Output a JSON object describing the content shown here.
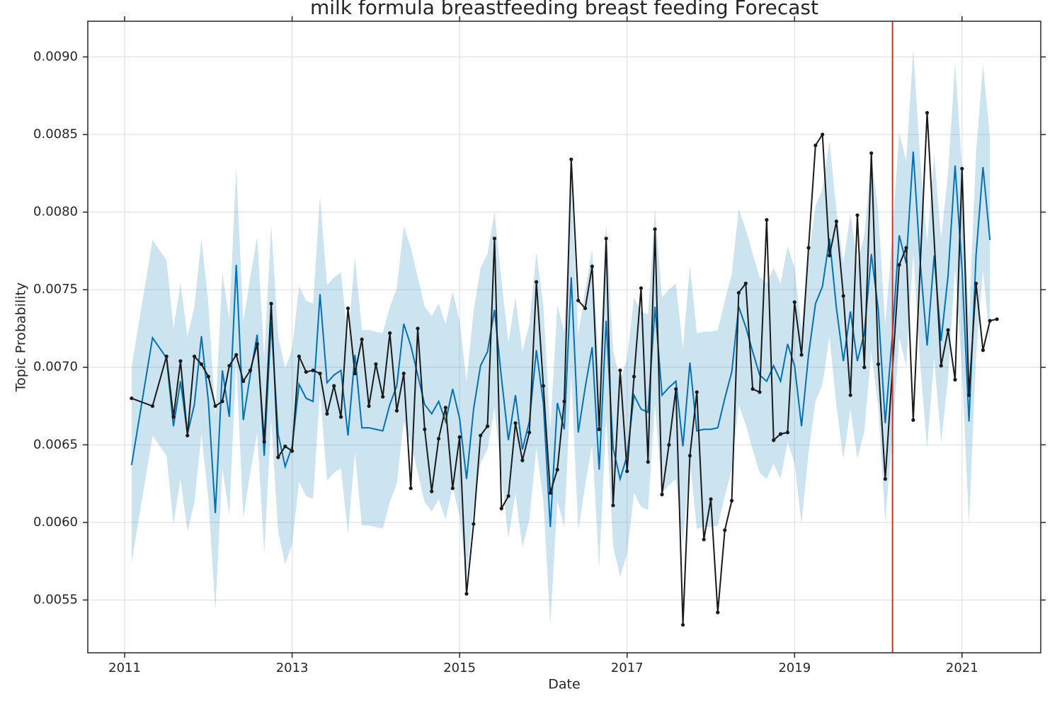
{
  "chart_data": {
    "type": "forecast",
    "title": "milk formula breastfeeding breast feeding Forecast",
    "x_label": "Date",
    "y_label": "Topic Probability",
    "xlim": [
      2010.56,
      2021.94
    ],
    "ylim": [
      0.00516,
      0.00923
    ],
    "xticks": [
      2011,
      2013,
      2015,
      2017,
      2019,
      2021
    ],
    "yticks": [
      0.0055,
      {
        "value": 0.006,
        "label": "0.0060"
      },
      0.0065,
      {
        "value": 0.007,
        "label": "0.0070"
      },
      0.0075,
      {
        "value": 0.008,
        "label": "0.0080"
      },
      0.0085,
      {
        "value": 0.009,
        "label": "0.0090"
      }
    ],
    "grid": true,
    "vlines": [
      {
        "x": 2020.17,
        "color": "#c0392b"
      }
    ],
    "series": [
      {
        "style": "band",
        "color": "#0072b2",
        "x": [
          2011.083,
          2011.333,
          2011.5,
          2011.583,
          2011.667,
          2011.75,
          2011.833,
          2011.917,
          2012,
          2012.083,
          2012.167,
          2012.25,
          2012.333,
          2012.417,
          2012.5,
          2012.583,
          2012.667,
          2012.75,
          2012.833,
          2012.917,
          2013,
          2013.083,
          2013.167,
          2013.25,
          2013.333,
          2013.417,
          2013.5,
          2013.583,
          2013.667,
          2013.75,
          2013.833,
          2013.917,
          2014,
          2014.083,
          2014.167,
          2014.25,
          2014.333,
          2014.417,
          2014.5,
          2014.583,
          2014.667,
          2014.75,
          2014.833,
          2014.917,
          2015,
          2015.083,
          2015.167,
          2015.25,
          2015.333,
          2015.417,
          2015.5,
          2015.583,
          2015.667,
          2015.75,
          2015.833,
          2015.917,
          2016,
          2016.083,
          2016.167,
          2016.25,
          2016.333,
          2016.417,
          2016.5,
          2016.583,
          2016.667,
          2016.75,
          2016.833,
          2016.917,
          2017,
          2017.083,
          2017.167,
          2017.25,
          2017.333,
          2017.417,
          2017.5,
          2017.583,
          2017.667,
          2017.75,
          2017.833,
          2017.917,
          2018,
          2018.083,
          2018.167,
          2018.25,
          2018.333,
          2018.417,
          2018.5,
          2018.583,
          2018.667,
          2018.75,
          2018.833,
          2018.917,
          2019,
          2019.083,
          2019.167,
          2019.25,
          2019.333,
          2019.417,
          2019.5,
          2019.583,
          2019.667,
          2019.75,
          2019.833,
          2019.917,
          2020,
          2020.083,
          2020.167,
          2020.25,
          2020.333,
          2020.417,
          2020.5,
          2020.583,
          2020.667,
          2020.75,
          2020.833,
          2020.917,
          2021,
          2021.083,
          2021.167,
          2021.25,
          2021.333
        ],
        "upper": [
          0.007,
          0.00782,
          0.00769,
          0.00725,
          0.00754,
          0.0072,
          0.00739,
          0.00783,
          0.00741,
          0.00669,
          0.00761,
          0.00731,
          0.00829,
          0.00729,
          0.00758,
          0.00784,
          0.00706,
          0.00792,
          0.0072,
          0.00699,
          0.00712,
          0.00752,
          0.00743,
          0.00741,
          0.0081,
          0.00753,
          0.00758,
          0.00761,
          0.00719,
          0.00771,
          0.00724,
          0.00724,
          0.00723,
          0.00722,
          0.00739,
          0.00751,
          0.00791,
          0.00777,
          0.00758,
          0.00739,
          0.00733,
          0.00741,
          0.00728,
          0.00749,
          0.0073,
          0.00691,
          0.00736,
          0.00764,
          0.00773,
          0.008,
          0.00756,
          0.00716,
          0.00745,
          0.0071,
          0.00728,
          0.00774,
          0.0074,
          0.0066,
          0.0074,
          0.00723,
          0.00821,
          0.00721,
          0.0075,
          0.00776,
          0.00697,
          0.00793,
          0.00711,
          0.00691,
          0.00706,
          0.00745,
          0.00736,
          0.00734,
          0.00802,
          0.00745,
          0.0075,
          0.00754,
          0.00712,
          0.00766,
          0.00722,
          0.00723,
          0.00723,
          0.00724,
          0.00743,
          0.0076,
          0.00802,
          0.00789,
          0.00773,
          0.00758,
          0.00754,
          0.00764,
          0.00754,
          0.00778,
          0.00764,
          0.00725,
          0.00771,
          0.00804,
          0.00815,
          0.00846,
          0.00801,
          0.00767,
          0.00799,
          0.00767,
          0.00785,
          0.00836,
          0.008,
          0.00727,
          0.00786,
          0.00851,
          0.00833,
          0.00905,
          0.00834,
          0.0078,
          0.00838,
          0.00783,
          0.00825,
          0.00896,
          0.00829,
          0.00731,
          0.00838,
          0.00895,
          0.00848
        ],
        "lower": [
          0.00574,
          0.00656,
          0.00643,
          0.00599,
          0.00628,
          0.00594,
          0.00613,
          0.00657,
          0.00615,
          0.00543,
          0.00635,
          0.00605,
          0.00703,
          0.00603,
          0.00632,
          0.00658,
          0.0058,
          0.00666,
          0.00594,
          0.00573,
          0.00586,
          0.00626,
          0.00617,
          0.00615,
          0.00684,
          0.00627,
          0.00632,
          0.00635,
          0.00593,
          0.00645,
          0.00598,
          0.00598,
          0.00597,
          0.00596,
          0.00613,
          0.00625,
          0.00665,
          0.00651,
          0.00632,
          0.00613,
          0.00607,
          0.00615,
          0.00602,
          0.00623,
          0.00604,
          0.00565,
          0.0061,
          0.00638,
          0.00647,
          0.00674,
          0.0063,
          0.0059,
          0.00619,
          0.00584,
          0.00602,
          0.00648,
          0.00614,
          0.00534,
          0.00614,
          0.00597,
          0.00695,
          0.00595,
          0.00624,
          0.0065,
          0.00571,
          0.00667,
          0.00585,
          0.00565,
          0.0058,
          0.00619,
          0.0061,
          0.00608,
          0.00676,
          0.00619,
          0.00624,
          0.00628,
          0.00586,
          0.0064,
          0.00596,
          0.00597,
          0.00597,
          0.00598,
          0.00617,
          0.00634,
          0.00676,
          0.00663,
          0.00647,
          0.00632,
          0.00628,
          0.00638,
          0.00628,
          0.00652,
          0.00638,
          0.00599,
          0.00645,
          0.00678,
          0.00689,
          0.0072,
          0.00675,
          0.00641,
          0.00673,
          0.00641,
          0.00659,
          0.0071,
          0.00674,
          0.00601,
          0.00654,
          0.00719,
          0.00701,
          0.00773,
          0.00702,
          0.00648,
          0.00706,
          0.00651,
          0.00693,
          0.00764,
          0.00697,
          0.00599,
          0.00706,
          0.00763,
          0.00716
        ]
      },
      {
        "style": "line",
        "color": "#0072b2",
        "x": [
          2011.083,
          2011.333,
          2011.5,
          2011.583,
          2011.667,
          2011.75,
          2011.833,
          2011.917,
          2012,
          2012.083,
          2012.167,
          2012.25,
          2012.333,
          2012.417,
          2012.5,
          2012.583,
          2012.667,
          2012.75,
          2012.833,
          2012.917,
          2013,
          2013.083,
          2013.167,
          2013.25,
          2013.333,
          2013.417,
          2013.5,
          2013.583,
          2013.667,
          2013.75,
          2013.833,
          2013.917,
          2014,
          2014.083,
          2014.167,
          2014.25,
          2014.333,
          2014.417,
          2014.5,
          2014.583,
          2014.667,
          2014.75,
          2014.833,
          2014.917,
          2015,
          2015.083,
          2015.167,
          2015.25,
          2015.333,
          2015.417,
          2015.5,
          2015.583,
          2015.667,
          2015.75,
          2015.833,
          2015.917,
          2016,
          2016.083,
          2016.167,
          2016.25,
          2016.333,
          2016.417,
          2016.5,
          2016.583,
          2016.667,
          2016.75,
          2016.833,
          2016.917,
          2017,
          2017.083,
          2017.167,
          2017.25,
          2017.333,
          2017.417,
          2017.5,
          2017.583,
          2017.667,
          2017.75,
          2017.833,
          2017.917,
          2018,
          2018.083,
          2018.167,
          2018.25,
          2018.333,
          2018.417,
          2018.5,
          2018.583,
          2018.667,
          2018.75,
          2018.833,
          2018.917,
          2019,
          2019.083,
          2019.167,
          2019.25,
          2019.333,
          2019.417,
          2019.5,
          2019.583,
          2019.667,
          2019.75,
          2019.833,
          2019.917,
          2020,
          2020.083,
          2020.167,
          2020.25,
          2020.333,
          2020.417,
          2020.5,
          2020.583,
          2020.667,
          2020.75,
          2020.833,
          2020.917,
          2021,
          2021.083,
          2021.167,
          2021.25,
          2021.333
        ],
        "values": [
          0.00637,
          0.00719,
          0.00706,
          0.00662,
          0.00691,
          0.00657,
          0.00676,
          0.0072,
          0.00678,
          0.00606,
          0.00698,
          0.00668,
          0.00766,
          0.00666,
          0.00695,
          0.00721,
          0.00643,
          0.00729,
          0.00657,
          0.00636,
          0.00649,
          0.00689,
          0.0068,
          0.00678,
          0.00747,
          0.0069,
          0.00695,
          0.00698,
          0.00656,
          0.00708,
          0.00661,
          0.00661,
          0.0066,
          0.00659,
          0.00676,
          0.00688,
          0.00728,
          0.00714,
          0.00695,
          0.00676,
          0.0067,
          0.00678,
          0.00665,
          0.00686,
          0.00667,
          0.00628,
          0.00673,
          0.00701,
          0.0071,
          0.00737,
          0.00693,
          0.00653,
          0.00682,
          0.00647,
          0.00665,
          0.00711,
          0.00677,
          0.00597,
          0.00677,
          0.0066,
          0.00758,
          0.00658,
          0.00687,
          0.00713,
          0.00634,
          0.0073,
          0.00648,
          0.00628,
          0.00643,
          0.00682,
          0.00673,
          0.00671,
          0.00739,
          0.00682,
          0.00687,
          0.00691,
          0.00649,
          0.00703,
          0.00659,
          0.0066,
          0.0066,
          0.00661,
          0.0068,
          0.00697,
          0.00739,
          0.00726,
          0.0071,
          0.00695,
          0.00691,
          0.00701,
          0.00691,
          0.00715,
          0.00701,
          0.00662,
          0.00708,
          0.00741,
          0.00752,
          0.00783,
          0.00738,
          0.00704,
          0.00736,
          0.00704,
          0.00722,
          0.00773,
          0.00737,
          0.00664,
          0.0072,
          0.00785,
          0.00767,
          0.00839,
          0.00768,
          0.00714,
          0.00772,
          0.00717,
          0.00759,
          0.0083,
          0.00763,
          0.00665,
          0.00772,
          0.00829,
          0.00782
        ]
      },
      {
        "style": "line-markers",
        "color": "#1a1a1a",
        "x": [
          2011.083,
          2011.333,
          2011.5,
          2011.583,
          2011.667,
          2011.75,
          2011.833,
          2011.917,
          2012,
          2012.083,
          2012.167,
          2012.25,
          2012.333,
          2012.417,
          2012.5,
          2012.583,
          2012.667,
          2012.75,
          2012.833,
          2012.917,
          2013,
          2013.083,
          2013.167,
          2013.25,
          2013.333,
          2013.417,
          2013.5,
          2013.583,
          2013.667,
          2013.75,
          2013.833,
          2013.917,
          2014,
          2014.083,
          2014.167,
          2014.25,
          2014.333,
          2014.417,
          2014.5,
          2014.583,
          2014.667,
          2014.75,
          2014.833,
          2014.917,
          2015,
          2015.083,
          2015.167,
          2015.25,
          2015.333,
          2015.417,
          2015.5,
          2015.583,
          2015.667,
          2015.75,
          2015.833,
          2015.917,
          2016,
          2016.083,
          2016.167,
          2016.25,
          2016.333,
          2016.417,
          2016.5,
          2016.583,
          2016.667,
          2016.75,
          2016.833,
          2016.917,
          2017,
          2017.083,
          2017.167,
          2017.25,
          2017.333,
          2017.417,
          2017.5,
          2017.583,
          2017.667,
          2017.75,
          2017.833,
          2017.917,
          2018,
          2018.083,
          2018.167,
          2018.25,
          2018.333,
          2018.417,
          2018.5,
          2018.583,
          2018.667,
          2018.75,
          2018.833,
          2018.917,
          2019,
          2019.083,
          2019.167,
          2019.25,
          2019.333,
          2019.417,
          2019.5,
          2019.583,
          2019.667,
          2019.75,
          2019.833,
          2019.917,
          2020,
          2020.083,
          2020.25,
          2020.333,
          2020.417,
          2020.583,
          2020.75,
          2020.833,
          2020.917,
          2021,
          2021.083,
          2021.167,
          2021.25,
          2021.333,
          2021.417
        ],
        "values": [
          0.0068,
          0.00675,
          0.00707,
          0.00668,
          0.00704,
          0.00656,
          0.00707,
          0.00702,
          0.00694,
          0.00675,
          0.00678,
          0.00701,
          0.00708,
          0.00691,
          0.00698,
          0.00715,
          0.00652,
          0.00741,
          0.00642,
          0.00649,
          0.00646,
          0.00707,
          0.00697,
          0.00698,
          0.00696,
          0.0067,
          0.00688,
          0.00668,
          0.00738,
          0.00696,
          0.00718,
          0.00675,
          0.00702,
          0.00681,
          0.00722,
          0.00672,
          0.00696,
          0.00622,
          0.00725,
          0.0066,
          0.0062,
          0.00654,
          0.00674,
          0.00622,
          0.00655,
          0.00554,
          0.00599,
          0.00656,
          0.00662,
          0.00783,
          0.00609,
          0.00617,
          0.00664,
          0.0064,
          0.00658,
          0.00755,
          0.00688,
          0.00619,
          0.00634,
          0.00678,
          0.00834,
          0.00743,
          0.00738,
          0.00765,
          0.0066,
          0.00783,
          0.00611,
          0.00698,
          0.00633,
          0.00694,
          0.00751,
          0.00639,
          0.00789,
          0.00618,
          0.0065,
          0.00686,
          0.00534,
          0.00643,
          0.00684,
          0.00589,
          0.00615,
          0.00542,
          0.00595,
          0.00614,
          0.00748,
          0.00754,
          0.00686,
          0.00684,
          0.00795,
          0.00653,
          0.00657,
          0.00658,
          0.00742,
          0.00708,
          0.00777,
          0.00843,
          0.0085,
          0.00772,
          0.00794,
          0.00746,
          0.00682,
          0.00798,
          0.007,
          0.00838,
          0.00702,
          0.00628,
          0.00766,
          0.00777,
          0.00666,
          0.00864,
          0.00701,
          0.00724,
          0.00692,
          0.00828,
          0.00682,
          0.00754,
          0.00711,
          0.0073,
          0.00731
        ]
      }
    ]
  }
}
